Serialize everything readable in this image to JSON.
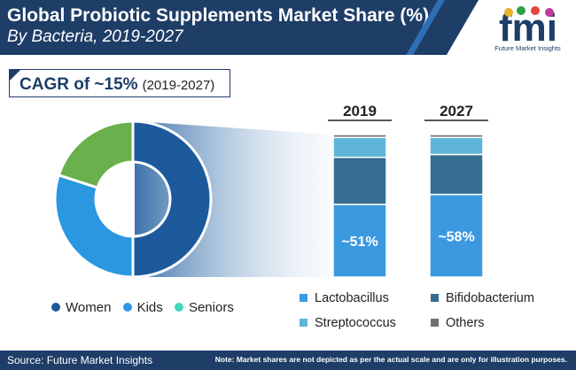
{
  "header": {
    "title": "Global Probiotic Supplements Market Share (%)",
    "subtitle": "By Bacteria, 2019-2027",
    "background_color": "#1e3d67"
  },
  "logo": {
    "wordmark": "fmi",
    "tagline": "Future Market Insights",
    "icon": "fmi-logo"
  },
  "cagr": {
    "label": "CAGR of ~15%",
    "period": "(2019-2027)"
  },
  "chart_data": [
    {
      "type": "pie",
      "style": "donut",
      "segments": [
        {
          "name": "Women",
          "value": 50,
          "color": "#1c5a9c"
        },
        {
          "name": "Kids",
          "value": 30,
          "color": "#2a97e0"
        },
        {
          "name": "Seniors",
          "value": 20,
          "color": "#6ab04c"
        }
      ]
    },
    {
      "type": "bar",
      "stacked": true,
      "categories": [
        "2019",
        "2027"
      ],
      "series": [
        {
          "name": "Lactobacillus",
          "values": [
            51,
            58
          ],
          "color": "#3b99e0",
          "labels": [
            "~51%",
            "~58%"
          ]
        },
        {
          "name": "Bifidobacterium",
          "values": [
            33,
            28
          ],
          "color": "#356e91"
        },
        {
          "name": "Streptococcus",
          "values": [
            14,
            12
          ],
          "color": "#5fb5d9"
        },
        {
          "name": "Others",
          "values": [
            2,
            2
          ],
          "color": "#707070"
        }
      ]
    }
  ],
  "legend_left": [
    {
      "label": "Women",
      "color": "#1c5a9c"
    },
    {
      "label": "Kids",
      "color": "#2a97e0"
    },
    {
      "label": "Seniors",
      "color": "#3ed6c0"
    }
  ],
  "legend_right": [
    {
      "label": "Lactobacillus",
      "color": "#3b99e0"
    },
    {
      "label": "Bifidobacterium",
      "color": "#356e91"
    },
    {
      "label": "Streptococcus",
      "color": "#5fb5d9"
    },
    {
      "label": "Others",
      "color": "#707070"
    }
  ],
  "footer": {
    "source": "Source: Future Market Insights",
    "note": "Note: Market shares are not depicted as per the actual scale and are only for illustration purposes."
  }
}
